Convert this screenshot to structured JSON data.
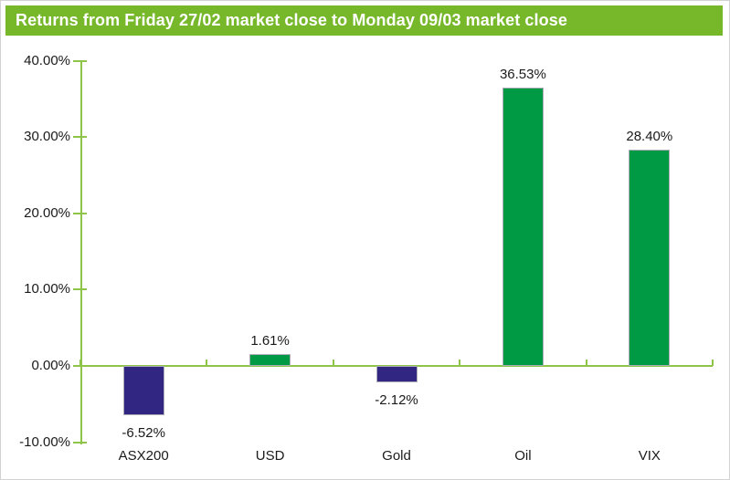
{
  "title": {
    "text": "Returns from Friday 27/02 market close to Monday 09/03 market close",
    "background": "#76B82A",
    "text_color": "#ffffff"
  },
  "chart_data": {
    "type": "bar",
    "title": "Returns from Friday 27/02 market close to Monday 09/03 market close",
    "categories": [
      "ASX200",
      "USD",
      "Gold",
      "Oil",
      "VIX"
    ],
    "values": [
      -6.52,
      1.61,
      -2.12,
      36.53,
      28.4
    ],
    "value_labels": [
      "-6.52%",
      "1.61%",
      "-2.12%",
      "36.53%",
      "28.40%"
    ],
    "xlabel": "",
    "ylabel": "",
    "ylim": [
      -10,
      40
    ],
    "ytick_step": 10,
    "yticks": [
      40,
      30,
      20,
      10,
      0,
      -10
    ],
    "ytick_labels": [
      "40.00%",
      "30.00%",
      "20.00%",
      "10.00%",
      "0.00%",
      "-10.00%"
    ],
    "grid": false,
    "legend": "none",
    "colors": {
      "positive_bar": "#009A44",
      "negative_bar": "#312783",
      "bar_border": "#ADADB8",
      "axis_line": "#8EC549",
      "text": "#1a1a1a"
    }
  }
}
